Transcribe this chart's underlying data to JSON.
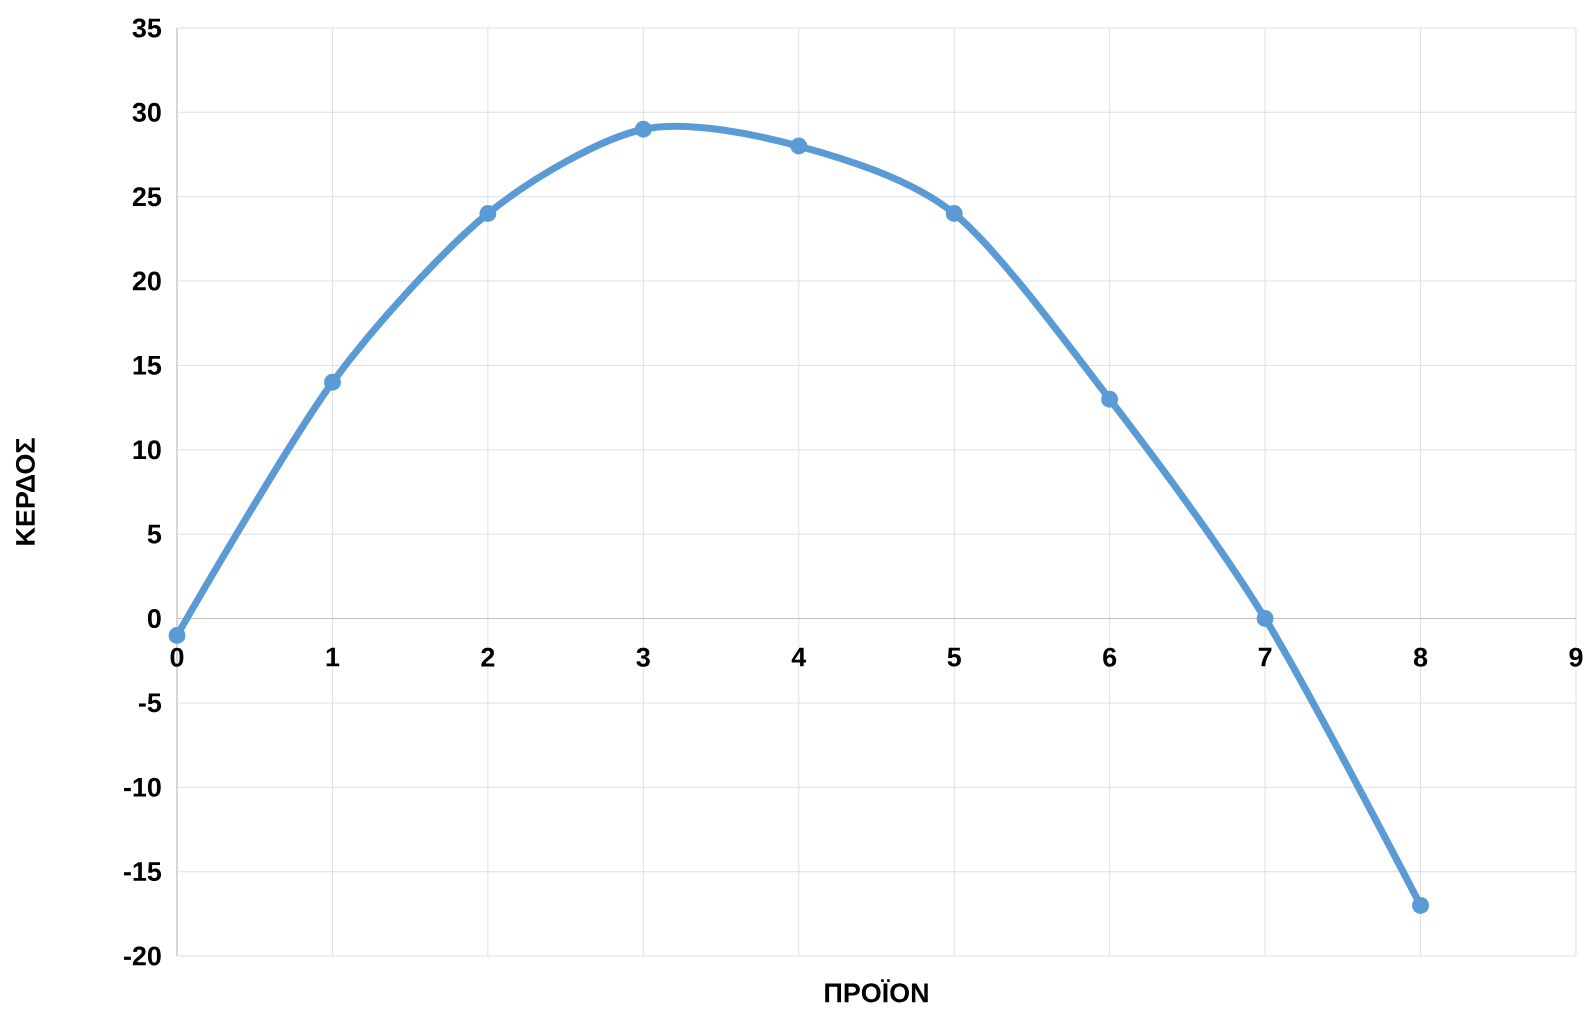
{
  "chart_data": {
    "type": "line",
    "xlabel": "ΠΡΟΪΟΝ",
    "ylabel": "ΚΕΡΔΟΣ",
    "x": [
      0,
      1,
      2,
      3,
      4,
      5,
      6,
      7,
      8
    ],
    "series": [
      {
        "color": "#5b9bd5",
        "values": [
          -1,
          14,
          24,
          29,
          28,
          24,
          13,
          0,
          -17
        ]
      }
    ],
    "xlim": [
      0,
      9
    ],
    "xticks": [
      0,
      1,
      2,
      3,
      4,
      5,
      6,
      7,
      8,
      9
    ],
    "ylim": [
      -20,
      35
    ],
    "yticks": [
      -20,
      -15,
      -10,
      -5,
      0,
      5,
      10,
      15,
      20,
      25,
      30,
      35
    ],
    "grid": true,
    "marker": "circle",
    "line_style": "solid"
  }
}
